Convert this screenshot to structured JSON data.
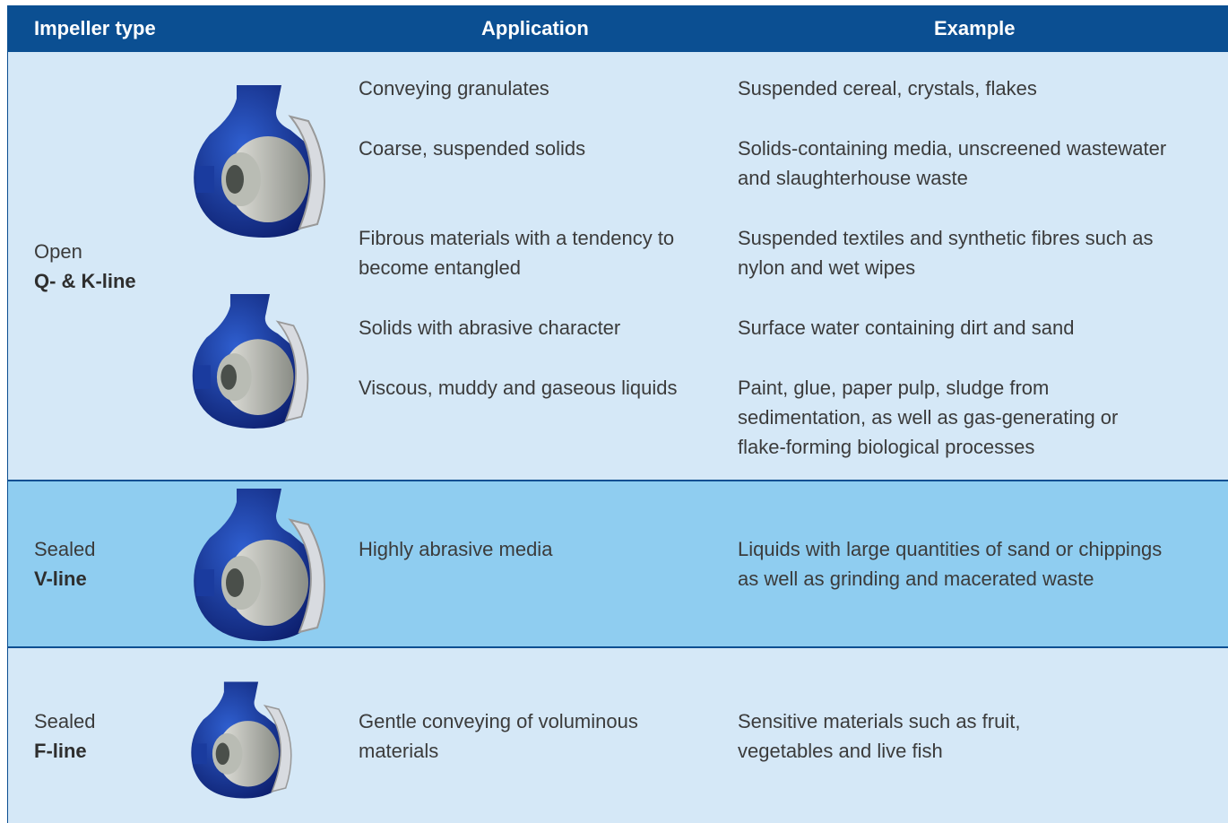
{
  "table": {
    "header": [
      "Impeller type",
      "Application",
      "Example"
    ],
    "rows": [
      {
        "type": "Open",
        "line": "Q- & K-line",
        "items": [
          {
            "application": [
              "Conveying granulates"
            ],
            "example": [
              "Suspended cereal, crystals, flakes"
            ]
          },
          {
            "application": [
              "Coarse, suspended solids"
            ],
            "example": [
              "Solids-containing media, unscreened wastewater",
              "and slaughterhouse waste"
            ]
          },
          {
            "application": [
              "Fibrous materials with a tendency to",
              "become entangled"
            ],
            "example": [
              "Suspended textiles and synthetic fibres such as",
              "nylon and wet wipes"
            ]
          },
          {
            "application": [
              "Solids with abrasive character"
            ],
            "example": [
              "Surface water containing dirt and sand"
            ]
          },
          {
            "application": [
              "Viscous, muddy and gaseous liquids"
            ],
            "example": [
              "Paint, glue, paper pulp, sludge from",
              "sedimentation, as well as gas-generating or",
              "flake-forming biological processes"
            ]
          }
        ]
      },
      {
        "type": "Sealed",
        "line": "V-line",
        "items": [
          {
            "application": [
              "Highly abrasive media"
            ],
            "example": [
              "Liquids with large quantities of sand or chippings",
              "as well as grinding and macerated waste"
            ]
          }
        ]
      },
      {
        "type": "Sealed",
        "line": "F-line",
        "items": [
          {
            "application": [
              "Gentle conveying of voluminous",
              "materials"
            ],
            "example": [
              "Sensitive materials such as fruit,",
              "vegetables and live fish"
            ]
          }
        ]
      }
    ]
  }
}
